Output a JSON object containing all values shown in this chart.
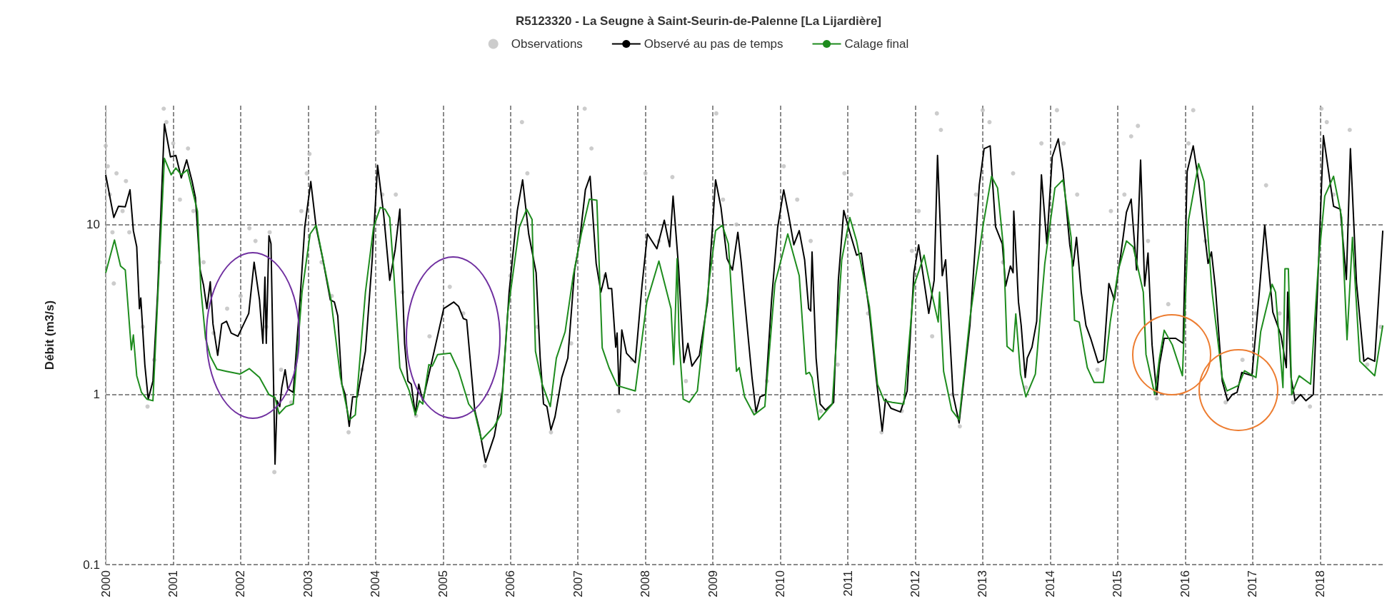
{
  "chart_data": {
    "type": "line",
    "title": "R5123320 - La Seugne à Saint-Seurin-de-Palenne [La Lijardière]",
    "ylabel": "Débit (m3/s)",
    "log": "y",
    "grid": true,
    "legend": "top",
    "xlim": [
      2000,
      2018.95
    ],
    "xticks": [
      2000,
      2001,
      2002,
      2003,
      2004,
      2005,
      2006,
      2007,
      2008,
      2009,
      2010,
      2011,
      2012,
      2013,
      2014,
      2015,
      2016,
      2017,
      2018
    ],
    "ylim": [
      0.1,
      50
    ],
    "yticks": [
      0.1,
      1,
      10
    ],
    "series": [
      {
        "name": "Observations",
        "type": "scatter",
        "color": "#bfbfbf",
        "x": [
          2000.0,
          2000.03,
          2000.06,
          2000.1,
          2000.12,
          2000.16,
          2000.25,
          2000.3,
          2000.35,
          2000.55,
          2000.62,
          2000.72,
          2000.8,
          2000.86,
          2000.9,
          2001.0,
          2001.1,
          2001.22,
          2001.3,
          2001.45,
          2001.6,
          2001.8,
          2002.0,
          2002.13,
          2002.22,
          2002.38,
          2002.43,
          2002.5,
          2002.6,
          2002.75,
          2002.9,
          2002.98,
          2003.02,
          2003.2,
          2003.35,
          2003.6,
          2003.8,
          2004.03,
          2004.1,
          2004.3,
          2004.4,
          2004.6,
          2004.8,
          2005.1,
          2005.3,
          2005.62,
          2005.85,
          2006.0,
          2006.17,
          2006.25,
          2006.4,
          2006.6,
          2006.9,
          2007.0,
          2007.1,
          2007.2,
          2007.4,
          2007.6,
          2007.8,
          2008.0,
          2008.2,
          2008.4,
          2008.6,
          2009.05,
          2009.15,
          2009.35,
          2009.6,
          2009.8,
          2010.05,
          2010.25,
          2010.45,
          2010.6,
          2010.85,
          2010.95,
          2011.05,
          2011.3,
          2011.5,
          2011.8,
          2011.95,
          2012.05,
          2012.25,
          2012.32,
          2012.38,
          2012.55,
          2012.66,
          2012.9,
          2013.0,
          2013.1,
          2013.3,
          2013.45,
          2013.64,
          2013.87,
          2014.1,
          2014.2,
          2014.4,
          2014.7,
          2014.9,
          2015.1,
          2015.2,
          2015.3,
          2015.45,
          2015.58,
          2015.75,
          2016.05,
          2016.12,
          2016.3,
          2016.6,
          2016.85,
          2017.05,
          2017.2,
          2017.4,
          2017.6,
          2017.85,
          2018.02,
          2018.1,
          2018.2,
          2018.44,
          2018.7,
          2018.9
        ],
        "values": [
          29,
          22,
          15,
          9,
          4.5,
          20,
          12,
          18,
          9,
          2.5,
          0.85,
          1.6,
          6,
          48,
          40,
          30,
          14,
          28,
          12,
          6,
          2.3,
          3.2,
          3.8,
          9.5,
          8,
          2.5,
          9,
          0.35,
          1.4,
          0.9,
          12,
          20,
          26,
          6,
          3.8,
          0.6,
          1.4,
          35,
          15,
          15,
          4,
          0.75,
          2.2,
          4.3,
          3,
          0.38,
          1,
          5,
          40,
          20,
          2.5,
          0.6,
          2,
          8,
          48,
          28,
          5,
          0.8,
          1.6,
          20,
          8,
          19,
          1.2,
          45,
          14,
          10,
          0.8,
          1.2,
          22,
          14,
          8,
          0.8,
          1.5,
          20,
          15,
          3,
          0.6,
          0.8,
          7,
          12,
          2.2,
          45,
          36,
          1,
          0.65,
          15,
          47,
          40,
          6,
          20,
          1.1,
          30,
          47,
          30,
          15,
          1.4,
          12,
          15,
          33,
          38,
          8,
          0.95,
          3.4,
          30,
          47,
          8,
          0.9,
          1.6,
          3,
          17,
          3,
          0.9,
          0.85,
          48,
          40,
          15,
          36,
          1.5,
          2.5
        ]
      },
      {
        "name": "Observé au pas de temps",
        "type": "line",
        "color": "#000000",
        "x": [
          2000.0,
          2000.12,
          2000.19,
          2000.29,
          2000.36,
          2000.41,
          2000.46,
          2000.5,
          2000.52,
          2000.58,
          2000.63,
          2000.7,
          2000.77,
          2000.87,
          2000.96,
          2001.04,
          2001.12,
          2001.2,
          2001.28,
          2001.33,
          2001.4,
          2001.45,
          2001.5,
          2001.55,
          2001.59,
          2001.66,
          2001.72,
          2001.79,
          2001.86,
          2001.96,
          2002.12,
          2002.2,
          2002.28,
          2002.33,
          2002.36,
          2002.38,
          2002.42,
          2002.45,
          2002.51,
          2002.54,
          2002.58,
          2002.61,
          2002.66,
          2002.7,
          2002.78,
          2002.88,
          2002.95,
          2003.04,
          2003.12,
          2003.22,
          2003.33,
          2003.39,
          2003.44,
          2003.5,
          2003.55,
          2003.61,
          2003.66,
          2003.73,
          2003.85,
          2003.95,
          2004.03,
          2004.12,
          2004.21,
          2004.29,
          2004.36,
          2004.43,
          2004.48,
          2004.53,
          2004.59,
          2004.64,
          2004.7,
          2004.84,
          2005.01,
          2005.16,
          2005.23,
          2005.3,
          2005.35,
          2005.47,
          2005.54,
          2005.63,
          2005.76,
          2005.88,
          2005.98,
          2006.1,
          2006.18,
          2006.27,
          2006.38,
          2006.44,
          2006.49,
          2006.54,
          2006.6,
          2006.66,
          2006.76,
          2006.85,
          2006.95,
          2007.02,
          2007.11,
          2007.18,
          2007.27,
          2007.34,
          2007.41,
          2007.45,
          2007.5,
          2007.56,
          2007.58,
          2007.61,
          2007.65,
          2007.72,
          2007.85,
          2007.95,
          2008.03,
          2008.17,
          2008.28,
          2008.36,
          2008.41,
          2008.49,
          2008.57,
          2008.63,
          2008.69,
          2008.8,
          2008.92,
          2009.04,
          2009.12,
          2009.21,
          2009.29,
          2009.37,
          2009.42,
          2009.48,
          2009.58,
          2009.64,
          2009.7,
          2009.78,
          2009.87,
          2009.96,
          2010.05,
          2010.12,
          2010.2,
          2010.28,
          2010.36,
          2010.42,
          2010.45,
          2010.47,
          2010.53,
          2010.59,
          2010.67,
          2010.79,
          2010.86,
          2010.94,
          2011.03,
          2011.13,
          2011.2,
          2011.32,
          2011.42,
          2011.51,
          2011.56,
          2011.64,
          2011.78,
          2011.88,
          2011.98,
          2012.05,
          2012.2,
          2012.28,
          2012.33,
          2012.4,
          2012.45,
          2012.56,
          2012.65,
          2012.81,
          2012.95,
          2013.02,
          2013.11,
          2013.19,
          2013.29,
          2013.34,
          2013.41,
          2013.45,
          2013.46,
          2013.53,
          2013.57,
          2013.63,
          2013.66,
          2013.73,
          2013.8,
          2013.87,
          2013.95,
          2014.03,
          2014.12,
          2014.19,
          2014.29,
          2014.34,
          2014.39,
          2014.46,
          2014.53,
          2014.6,
          2014.71,
          2014.79,
          2014.87,
          2014.95,
          2015.05,
          2015.13,
          2015.2,
          2015.28,
          2015.34,
          2015.4,
          2015.45,
          2015.51,
          2015.58,
          2015.62,
          2015.69,
          2015.86,
          2015.97,
          2016.03,
          2016.12,
          2016.2,
          2016.34,
          2016.39,
          2016.45,
          2016.55,
          2016.63,
          2016.7,
          2016.77,
          2016.84,
          2016.99,
          2017.09,
          2017.18,
          2017.3,
          2017.37,
          2017.42,
          2017.5,
          2017.52,
          2017.57,
          2017.63,
          2017.71,
          2017.79,
          2017.9,
          2017.98,
          2018.05,
          2018.2,
          2018.3,
          2018.39,
          2018.45,
          2018.54,
          2018.65,
          2018.71,
          2018.81,
          2018.93
        ],
        "values": [
          19.6,
          11,
          12.8,
          12.7,
          16,
          9.2,
          7.4,
          3.2,
          3.7,
          1.5,
          0.94,
          1.2,
          4,
          39,
          25,
          25.5,
          18.8,
          24,
          18,
          14.4,
          5.4,
          4.4,
          3.2,
          4.6,
          2.6,
          1.7,
          2.6,
          2.7,
          2.3,
          2.2,
          3,
          6,
          3.6,
          2,
          4.9,
          2,
          8.6,
          7.7,
          0.39,
          0.92,
          0.85,
          1.1,
          1.4,
          1.08,
          1.03,
          3.6,
          9.6,
          17.9,
          9.6,
          6.2,
          3.6,
          3.5,
          2.9,
          1.15,
          1,
          0.65,
          0.97,
          0.97,
          1.8,
          6.2,
          22.3,
          11.5,
          4.7,
          7.1,
          12.3,
          2,
          1.2,
          1.15,
          0.76,
          1.15,
          0.92,
          1.6,
          3.2,
          3.5,
          3.3,
          2.8,
          2.75,
          0.81,
          0.62,
          0.4,
          0.57,
          1.05,
          4,
          12,
          18.3,
          8.8,
          5.2,
          1.64,
          0.88,
          0.85,
          0.62,
          0.74,
          1.26,
          1.64,
          5.4,
          7.7,
          16,
          19.2,
          5.9,
          4,
          5.2,
          4.2,
          4.2,
          1.9,
          2.3,
          1,
          2.4,
          1.75,
          1.54,
          4.4,
          8.8,
          7.2,
          10.6,
          7.4,
          14.7,
          5.7,
          1.54,
          2,
          1.47,
          1.7,
          3.5,
          18.3,
          12.6,
          6.3,
          5.4,
          9,
          6,
          3.3,
          1.26,
          0.79,
          0.97,
          1,
          3.6,
          9.6,
          16,
          11.5,
          7.6,
          9.2,
          6.2,
          3.2,
          3.1,
          6.9,
          1.64,
          0.88,
          0.81,
          0.9,
          4.7,
          12.1,
          9,
          6.6,
          6.8,
          3.05,
          1.26,
          0.61,
          0.94,
          0.83,
          0.79,
          1.05,
          5.2,
          7.6,
          3,
          4.7,
          25.5,
          5,
          6.2,
          1,
          0.68,
          2.55,
          17.1,
          27.9,
          29,
          9.7,
          7.7,
          4.35,
          5.7,
          5.2,
          12,
          3.5,
          2.55,
          1.26,
          1.64,
          1.9,
          2.7,
          19.6,
          7.7,
          25,
          31.9,
          20.5,
          7.6,
          5.7,
          8.4,
          4,
          2.55,
          2.14,
          1.54,
          1.6,
          4.5,
          3.6,
          6.8,
          11.8,
          14.1,
          5.4,
          23.9,
          4.35,
          6.8,
          1.96,
          1,
          1.5,
          2.14,
          2.14,
          2,
          20.5,
          29,
          17.9,
          5.9,
          6.9,
          4.2,
          1.2,
          0.92,
          1,
          1.03,
          1.35,
          1.29,
          3.6,
          9.9,
          3.05,
          2.55,
          2.24,
          1.44,
          4,
          1.26,
          0.92,
          1,
          0.92,
          1,
          6.2,
          33.3,
          12.8,
          12.3,
          4.75,
          27.9,
          4.55,
          1.57,
          1.64,
          1.57,
          9.2
        ]
      },
      {
        "name": "Calage final",
        "type": "line",
        "color": "#1e8c1e",
        "x": [
          2000.0,
          2000.13,
          2000.22,
          2000.29,
          2000.38,
          2000.41,
          2000.46,
          2000.53,
          2000.61,
          2000.7,
          2000.77,
          2000.87,
          2000.97,
          2001.04,
          2001.12,
          2001.21,
          2001.36,
          2001.41,
          2001.48,
          2001.55,
          2001.65,
          2001.79,
          2001.99,
          2002.13,
          2002.28,
          2002.42,
          2002.51,
          2002.57,
          2002.67,
          2002.78,
          2002.91,
          2003.03,
          2003.12,
          2003.24,
          2003.34,
          2003.48,
          2003.61,
          2003.7,
          2003.85,
          2003.97,
          2004.07,
          2004.14,
          2004.21,
          2004.27,
          2004.36,
          2004.5,
          2004.59,
          2004.65,
          2004.7,
          2004.79,
          2004.84,
          2004.92,
          2005.11,
          2005.23,
          2005.38,
          2005.47,
          2005.57,
          2005.76,
          2005.86,
          2005.96,
          2006.13,
          2006.24,
          2006.32,
          2006.37,
          2006.47,
          2006.59,
          2006.68,
          2006.81,
          2006.93,
          2007.05,
          2007.17,
          2007.28,
          2007.36,
          2007.46,
          2007.58,
          2007.85,
          2008.02,
          2008.2,
          2008.38,
          2008.42,
          2008.47,
          2008.5,
          2008.56,
          2008.65,
          2008.77,
          2008.94,
          2009.04,
          2009.14,
          2009.23,
          2009.35,
          2009.39,
          2009.47,
          2009.61,
          2009.77,
          2009.92,
          2010.11,
          2010.28,
          2010.38,
          2010.43,
          2010.47,
          2010.57,
          2010.77,
          2010.91,
          2011.03,
          2011.13,
          2011.32,
          2011.44,
          2011.54,
          2011.66,
          2011.83,
          2011.98,
          2012.13,
          2012.24,
          2012.34,
          2012.36,
          2012.42,
          2012.54,
          2012.65,
          2012.81,
          2013.0,
          2013.13,
          2013.22,
          2013.31,
          2013.36,
          2013.45,
          2013.49,
          2013.56,
          2013.64,
          2013.78,
          2013.92,
          2014.07,
          2014.19,
          2014.31,
          2014.36,
          2014.43,
          2014.55,
          2014.65,
          2014.79,
          2014.89,
          2015.01,
          2015.13,
          2015.23,
          2015.38,
          2015.42,
          2015.55,
          2015.62,
          2015.69,
          2015.81,
          2015.96,
          2016.05,
          2016.2,
          2016.28,
          2016.4,
          2016.55,
          2016.62,
          2016.79,
          2016.88,
          2017.05,
          2017.12,
          2017.29,
          2017.34,
          2017.45,
          2017.48,
          2017.53,
          2017.58,
          2017.69,
          2017.86,
          2017.98,
          2018.07,
          2018.2,
          2018.32,
          2018.4,
          2018.48,
          2018.59,
          2018.81,
          2018.93
        ],
        "values": [
          5.2,
          8.1,
          5.7,
          5.4,
          1.83,
          2.24,
          1.29,
          1.03,
          0.94,
          0.92,
          3.6,
          24.5,
          19.6,
          21.5,
          19.6,
          21,
          12,
          4.2,
          2.14,
          1.68,
          1.41,
          1.37,
          1.32,
          1.42,
          1.26,
          1,
          0.96,
          0.77,
          0.85,
          0.88,
          4,
          8.8,
          9.9,
          5.7,
          3.6,
          1.26,
          0.71,
          0.76,
          4,
          9.6,
          12.6,
          12.3,
          11,
          5.2,
          1.44,
          1.05,
          0.76,
          0.92,
          0.88,
          1.5,
          1.47,
          1.72,
          1.75,
          1.38,
          0.88,
          0.79,
          0.54,
          0.65,
          0.77,
          3.05,
          9.6,
          12.3,
          10.7,
          1.8,
          1.15,
          0.85,
          1.64,
          2.34,
          5,
          8.8,
          14.1,
          13.9,
          1.88,
          1.44,
          1.13,
          1.05,
          3.5,
          6.1,
          3.2,
          1.5,
          6.3,
          2.05,
          0.94,
          0.9,
          1.05,
          4.5,
          9.2,
          9.9,
          7.7,
          1.37,
          1.44,
          0.97,
          0.76,
          0.85,
          4.5,
          8.8,
          5,
          1.32,
          1.35,
          1.26,
          0.71,
          0.88,
          6.2,
          11,
          8,
          3.3,
          1.15,
          0.92,
          0.9,
          0.88,
          4.35,
          6.6,
          4,
          2.67,
          4,
          1.37,
          0.81,
          0.71,
          2.8,
          9.6,
          19.2,
          16.4,
          7.1,
          1.92,
          1.79,
          2.98,
          1.32,
          0.97,
          1.32,
          5.9,
          16.4,
          18.3,
          8.4,
          2.73,
          2.67,
          1.44,
          1.18,
          1.18,
          2.67,
          5.4,
          8,
          7.4,
          4,
          1.72,
          1,
          1.64,
          2.39,
          1.96,
          1.29,
          10.6,
          22.8,
          17.9,
          4,
          1.26,
          1.05,
          1.13,
          1.38,
          1.26,
          2.34,
          4.45,
          4,
          1.1,
          5.5,
          5.5,
          1,
          1.29,
          1.15,
          6.2,
          14.7,
          19.2,
          11,
          2.1,
          8.4,
          1.57,
          1.29,
          2.55
        ]
      }
    ]
  }
}
